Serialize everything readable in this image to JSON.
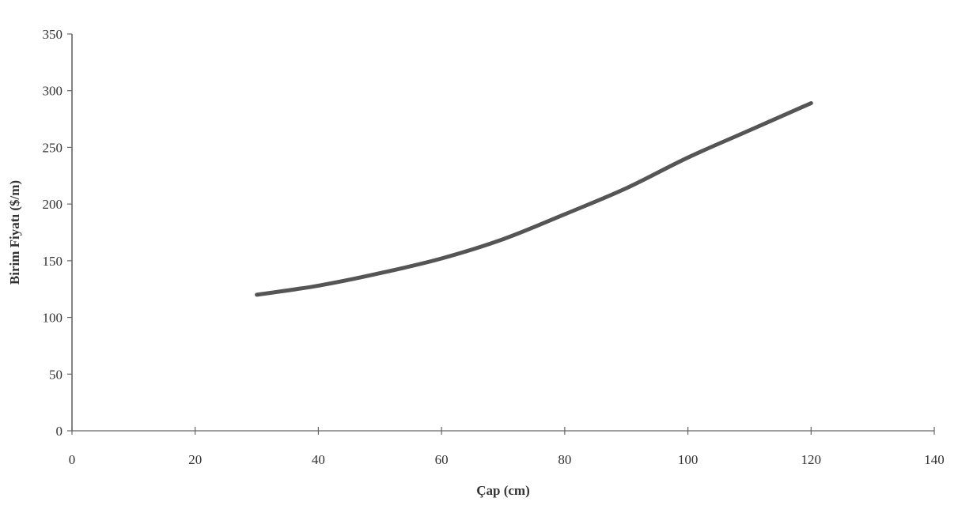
{
  "chart_data": {
    "type": "line",
    "title": "",
    "xlabel": "Çap (cm)",
    "ylabel": "Birim Fiyatı ($/m)",
    "xlim": [
      0,
      140
    ],
    "ylim": [
      0,
      350
    ],
    "x_ticks": [
      "0",
      "20",
      "40",
      "60",
      "80",
      "100",
      "120",
      "140"
    ],
    "y_ticks": [
      "0",
      "50",
      "100",
      "150",
      "200",
      "250",
      "300",
      "350"
    ],
    "grid": false,
    "legend": "none",
    "line_color": "#555555",
    "axis_color": "#666666",
    "series": [
      {
        "x": [
          30,
          40,
          50,
          60,
          70,
          80,
          90,
          100,
          110,
          120
        ],
        "values": [
          120,
          128,
          139,
          152,
          169,
          191,
          214,
          241,
          265,
          289
        ]
      }
    ]
  }
}
